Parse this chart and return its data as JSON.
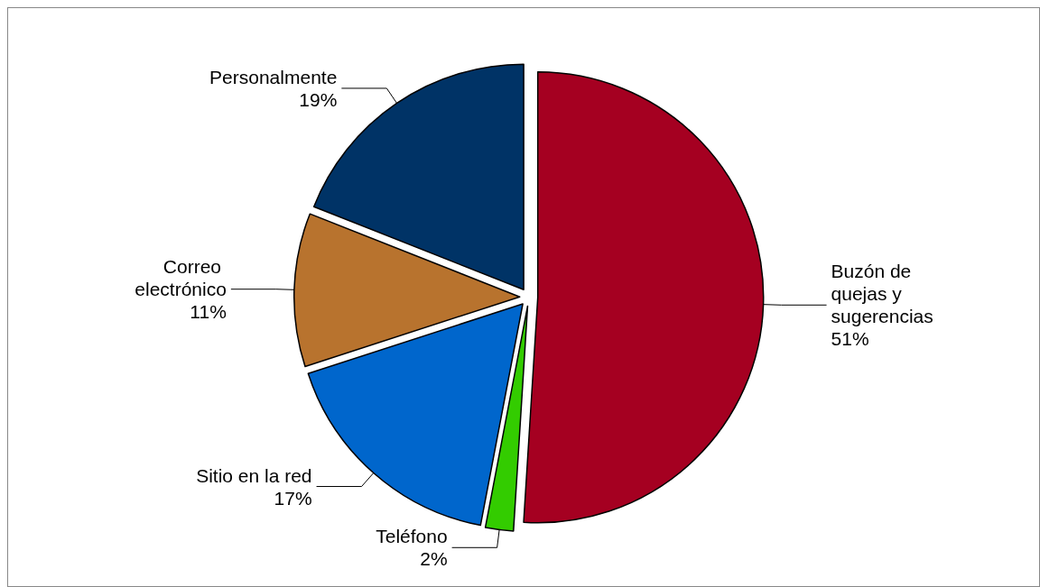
{
  "chart_data": {
    "type": "pie",
    "categories": [
      "Buzón de quejas y sugerencias",
      "Teléfono",
      "Sitio en la red",
      "Correo electrónico",
      "Personalmente"
    ],
    "values": [
      51,
      2,
      17,
      11,
      19
    ],
    "colors": [
      "#a50021",
      "#33cc00",
      "#0066cc",
      "#b8732e",
      "#003366"
    ],
    "value_labels": [
      "51%",
      "2%",
      "17%",
      "11%",
      "19%"
    ],
    "legend": false
  }
}
